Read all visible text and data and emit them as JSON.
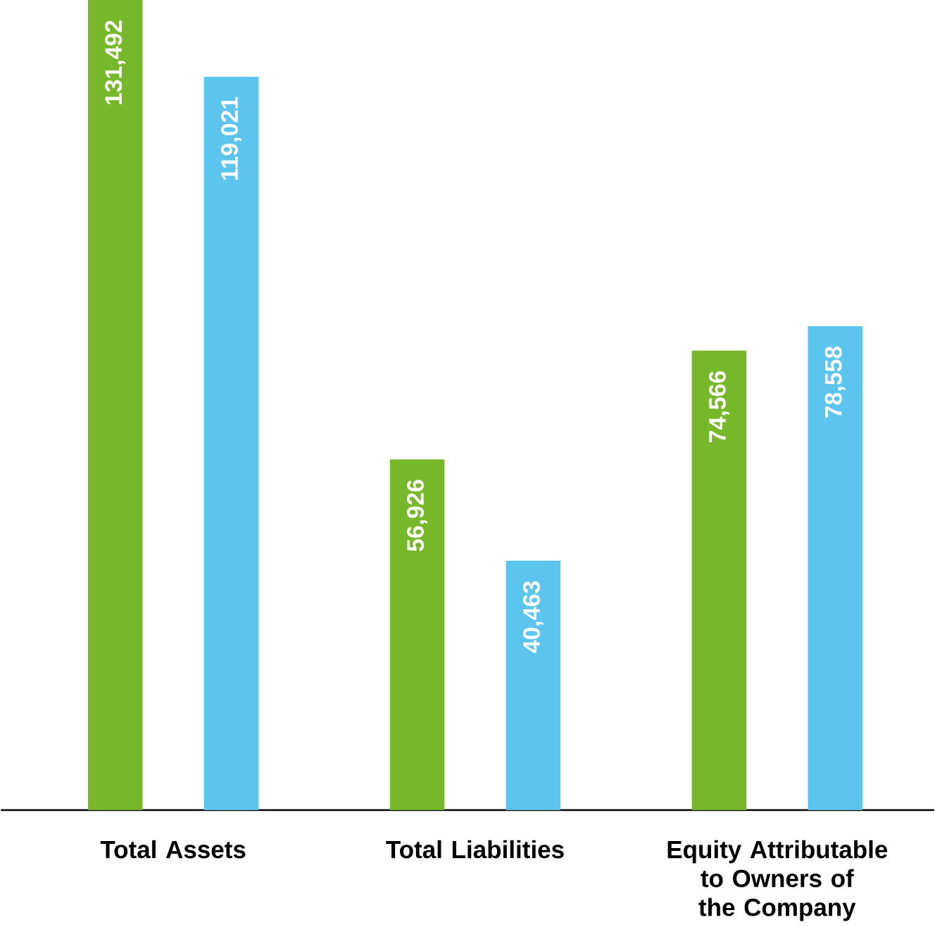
{
  "chart_data": {
    "type": "bar",
    "categories": [
      "Total Assets",
      "Total Liabilities",
      "Equity Attributable to Owners of the Company"
    ],
    "series": [
      {
        "color": "#76b82a",
        "values": [
          131492,
          56926,
          74566
        ],
        "value_labels": [
          "131,492",
          "56,926",
          "74,566"
        ]
      },
      {
        "color": "#5bc5f0",
        "values": [
          119021,
          40463,
          78558
        ],
        "value_labels": [
          "119,021",
          "40,463",
          "78,558"
        ]
      }
    ],
    "tick_labels": "x",
    "grid": false
  }
}
